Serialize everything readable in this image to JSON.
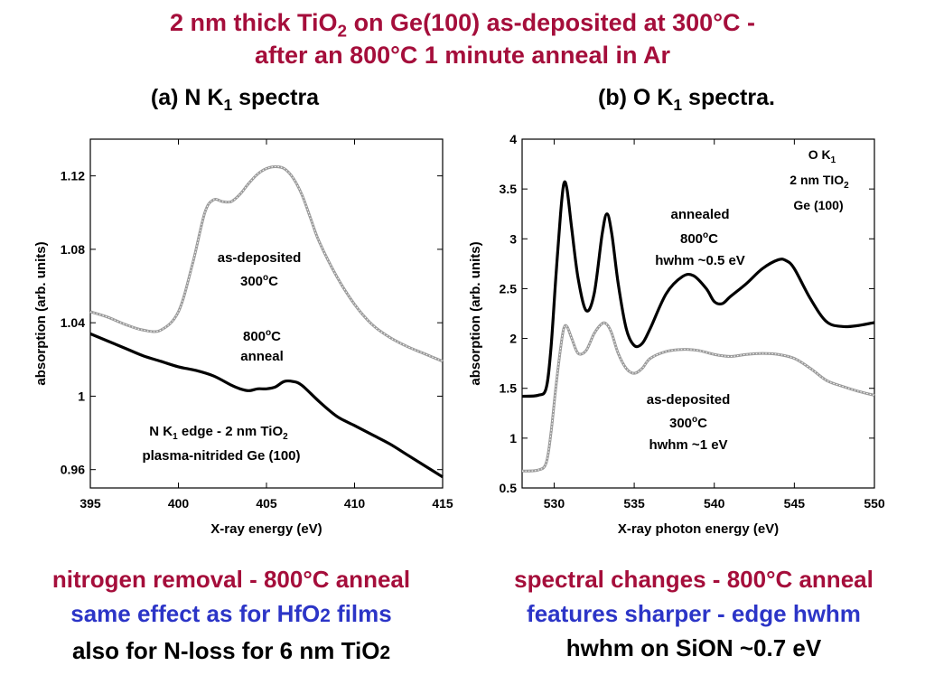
{
  "title": {
    "line1_pre": "2 nm thick TiO",
    "line1_sub": "2",
    "line1_post": " on Ge(100) as-deposited at 300°C -",
    "line2": "after an 800°C 1 minute anneal in Ar"
  },
  "panels": {
    "a_title_pre": "(a) N K",
    "a_title_sub": "1",
    "a_title_post": " spectra",
    "b_title_pre": "(b) O K",
    "b_title_sub": "1",
    "b_title_post": " spectra."
  },
  "chart_data": [
    {
      "type": "line",
      "xlabel": "X-ray energy (eV)",
      "ylabel": "absorption (arb. units)",
      "xlim": [
        395,
        415
      ],
      "ylim": [
        0.95,
        1.14
      ],
      "xticks": [
        "395",
        "400",
        "405",
        "410",
        "415"
      ],
      "yticks": [
        "0.96",
        "1",
        "1.04",
        "1.08",
        "1.12"
      ],
      "annotations": {
        "asdep_1": "as-deposited",
        "asdep_2_pre": "300",
        "asdep_2_sup": "o",
        "asdep_2_post": "C",
        "ann_1_pre": "800",
        "ann_1_sup": "o",
        "ann_1_post": "C",
        "ann_2": "anneal",
        "edge_1_pre": "N K",
        "edge_1_sub": "1",
        "edge_1_mid": " edge  - 2  nm TiO",
        "edge_1_sub2": "2",
        "edge_2": "plasma-nitrided Ge (100)"
      },
      "series": [
        {
          "color": "#9a9a9a",
          "marker": "open-circle",
          "x": [
            395,
            396,
            397,
            398,
            399,
            400,
            400.8,
            401.5,
            402,
            402.5,
            403,
            403.5,
            404,
            404.5,
            405,
            405.5,
            406,
            406.5,
            407,
            407.5,
            408,
            409,
            410,
            411,
            412,
            413,
            414,
            415
          ],
          "y": [
            1.046,
            1.043,
            1.039,
            1.036,
            1.036,
            1.046,
            1.072,
            1.1,
            1.107,
            1.106,
            1.106,
            1.11,
            1.116,
            1.121,
            1.124,
            1.125,
            1.124,
            1.119,
            1.11,
            1.097,
            1.084,
            1.065,
            1.05,
            1.039,
            1.032,
            1.027,
            1.023,
            1.019
          ]
        },
        {
          "color": "#000000",
          "marker": "filled-circle",
          "x": [
            395,
            396,
            397,
            398,
            399,
            400,
            401,
            402,
            403,
            403.5,
            404,
            404.5,
            405,
            405.5,
            406,
            406.5,
            407,
            408,
            409,
            410,
            411,
            412,
            413,
            414,
            415
          ],
          "y": [
            1.034,
            1.03,
            1.026,
            1.022,
            1.019,
            1.016,
            1.014,
            1.011,
            1.006,
            1.004,
            1.003,
            1.004,
            1.004,
            1.005,
            1.008,
            1.008,
            1.006,
            0.997,
            0.989,
            0.984,
            0.979,
            0.974,
            0.968,
            0.962,
            0.956
          ]
        }
      ]
    },
    {
      "type": "line",
      "xlabel": "X-ray photon energy (eV)",
      "ylabel": "absorption (arb. units)",
      "xlim": [
        528,
        550
      ],
      "ylim": [
        0.5,
        4
      ],
      "xticks": [
        "530",
        "535",
        "540",
        "545",
        "550"
      ],
      "yticks": [
        "0.5",
        "1",
        "1.5",
        "2",
        "2.5",
        "3",
        "3.5",
        "4"
      ],
      "annotations": {
        "ok_1_pre": "O K",
        "ok_1_sub": "1",
        "ok_2_pre": "2 nm  TIO",
        "ok_2_sub": "2",
        "ok_3": "Ge (100)",
        "annealed_1": "annealed",
        "annealed_2_pre": "800",
        "annealed_2_sup": "o",
        "annealed_2_post": "C",
        "annealed_3": "hwhm ~0.5 eV",
        "asdep_1": "as-deposited",
        "asdep_2_pre": "300",
        "asdep_2_sup": "o",
        "asdep_2_post": "C",
        "asdep_3": "hwhm ~1 eV"
      },
      "series": [
        {
          "color": "#000000",
          "marker": "filled-circle",
          "x": [
            528,
            529,
            529.5,
            529.8,
            530.1,
            530.4,
            530.6,
            530.8,
            531.1,
            531.5,
            532,
            532.5,
            533,
            533.3,
            533.6,
            534,
            534.5,
            535,
            535.5,
            536,
            537,
            538,
            538.7,
            539.5,
            540,
            540.5,
            541,
            542,
            543,
            544,
            544.5,
            545,
            546,
            547,
            548,
            549,
            550
          ],
          "y": [
            1.42,
            1.43,
            1.5,
            1.9,
            2.6,
            3.25,
            3.55,
            3.5,
            3.1,
            2.6,
            2.28,
            2.45,
            3.05,
            3.25,
            3.05,
            2.55,
            2.1,
            1.93,
            1.95,
            2.1,
            2.45,
            2.62,
            2.63,
            2.5,
            2.37,
            2.35,
            2.42,
            2.55,
            2.7,
            2.79,
            2.78,
            2.7,
            2.4,
            2.17,
            2.12,
            2.13,
            2.16
          ]
        },
        {
          "color": "#9a9a9a",
          "marker": "open-circle",
          "x": [
            528,
            529,
            529.5,
            529.8,
            530.1,
            530.4,
            530.6,
            530.8,
            531.1,
            531.5,
            532,
            532.5,
            533,
            533.3,
            533.6,
            534,
            534.5,
            535,
            535.5,
            536,
            537,
            538,
            539,
            540,
            541,
            542,
            543,
            544,
            545,
            546,
            547,
            548,
            549,
            550
          ],
          "y": [
            0.67,
            0.68,
            0.75,
            1.05,
            1.5,
            1.9,
            2.1,
            2.12,
            2.0,
            1.85,
            1.88,
            2.05,
            2.15,
            2.14,
            2.05,
            1.85,
            1.7,
            1.65,
            1.7,
            1.8,
            1.87,
            1.89,
            1.88,
            1.84,
            1.82,
            1.84,
            1.85,
            1.84,
            1.8,
            1.7,
            1.58,
            1.52,
            1.47,
            1.43
          ]
        }
      ]
    }
  ],
  "bottom_left": {
    "l1": "nitrogen removal - 800°C anneal",
    "l2_pre": "same effect as for HfO",
    "l2_sub": "2",
    "l2_post": " films",
    "l3_pre": "also for N-loss for 6 nm TiO",
    "l3_sub": "2"
  },
  "bottom_right": {
    "l1": "spectral changes - 800°C anneal",
    "l2": "features sharper - edge hwhm",
    "l3": "hwhm on SiON ~0.7 eV"
  }
}
